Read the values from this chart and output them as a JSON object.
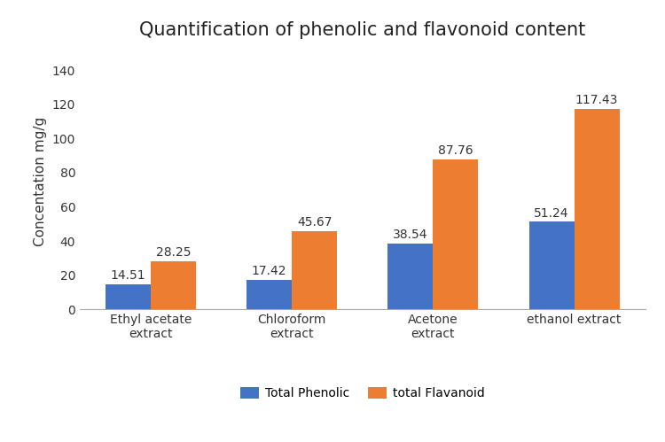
{
  "title": "Quantification of phenolic and flavonoid content",
  "ylabel": "Concentation mg/g",
  "categories": [
    "Ethyl acetate\nextract",
    "Chloroform\nextract",
    "Acetone\nextract",
    "ethanol extract"
  ],
  "series": [
    {
      "label": "Total Phenolic",
      "values": [
        14.51,
        17.42,
        38.54,
        51.24
      ],
      "color": "#4472C4"
    },
    {
      "label": "total Flavanoid",
      "values": [
        28.25,
        45.67,
        87.76,
        117.43
      ],
      "color": "#ED7D31"
    }
  ],
  "ylim": [
    0,
    150
  ],
  "yticks": [
    0,
    20,
    40,
    60,
    80,
    100,
    120,
    140
  ],
  "bar_width": 0.32,
  "background_color": "#ffffff",
  "title_fontsize": 15,
  "ylabel_fontsize": 11,
  "tick_fontsize": 10,
  "annotation_fontsize": 10,
  "legend_fontsize": 10
}
